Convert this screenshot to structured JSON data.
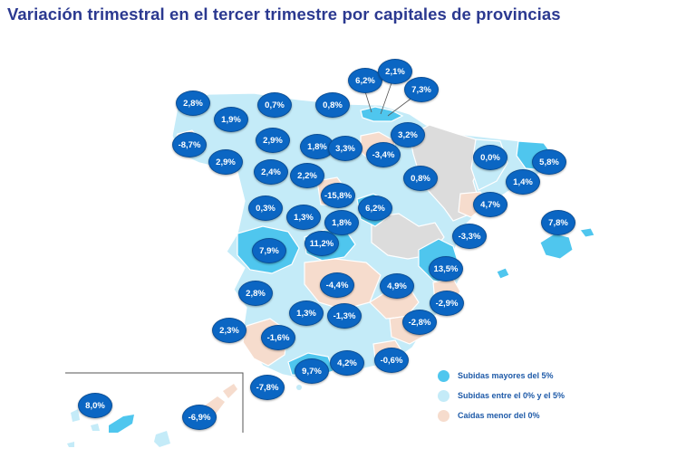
{
  "title": "Variación trimestral en el tercer trimestre por capitales de provincias",
  "colors": {
    "up_more_5": "#4fc6ee",
    "up_0_5": "#c4ebf8",
    "down": "#f6dccd",
    "no_data": "#dcdcdc",
    "bubble": "#0b66c3",
    "title": "#2b3990"
  },
  "legend": [
    {
      "label": "Subidas mayores del 5%",
      "category": "up_more_5"
    },
    {
      "label": "Subidas entre el 0% y el 5%",
      "category": "up_0_5"
    },
    {
      "label": "Caídas menor del 0%",
      "category": "down"
    }
  ],
  "values": [
    {
      "id": "v01",
      "label": "2,8%"
    },
    {
      "id": "v02",
      "label": "0,7%"
    },
    {
      "id": "v03",
      "label": "0,8%"
    },
    {
      "id": "v04",
      "label": "6,2%"
    },
    {
      "id": "v05",
      "label": "2,1%"
    },
    {
      "id": "v06",
      "label": "7,3%"
    },
    {
      "id": "v07",
      "label": "1,9%"
    },
    {
      "id": "v08",
      "label": "-8,7%"
    },
    {
      "id": "v09",
      "label": "2,9%"
    },
    {
      "id": "v10",
      "label": "2,9%"
    },
    {
      "id": "v11",
      "label": "1,8%"
    },
    {
      "id": "v12",
      "label": "3,3%"
    },
    {
      "id": "v13",
      "label": "-3,4%"
    },
    {
      "id": "v14",
      "label": "3,2%"
    },
    {
      "id": "v15",
      "label": "0,0%"
    },
    {
      "id": "v16",
      "label": "5,8%"
    },
    {
      "id": "v17",
      "label": "2,4%"
    },
    {
      "id": "v18",
      "label": "2,2%"
    },
    {
      "id": "v19",
      "label": "0,8%"
    },
    {
      "id": "v20",
      "label": "1,4%"
    },
    {
      "id": "v21",
      "label": "-15,8%"
    },
    {
      "id": "v22",
      "label": "0,3%"
    },
    {
      "id": "v23",
      "label": "1,3%"
    },
    {
      "id": "v24",
      "label": "6,2%"
    },
    {
      "id": "v25",
      "label": "4,7%"
    },
    {
      "id": "v26",
      "label": "1,8%"
    },
    {
      "id": "v27",
      "label": "7,8%"
    },
    {
      "id": "v28",
      "label": "-3,3%"
    },
    {
      "id": "v29",
      "label": "7,9%"
    },
    {
      "id": "v30",
      "label": "11,2%"
    },
    {
      "id": "v31",
      "label": "13,5%"
    },
    {
      "id": "v32",
      "label": "-4,4%"
    },
    {
      "id": "v33",
      "label": "4,9%"
    },
    {
      "id": "v34",
      "label": "2,8%"
    },
    {
      "id": "v35",
      "label": "-2,9%"
    },
    {
      "id": "v36",
      "label": "1,3%"
    },
    {
      "id": "v37",
      "label": "-1,3%"
    },
    {
      "id": "v38",
      "label": "-2,8%"
    },
    {
      "id": "v39",
      "label": "2,3%"
    },
    {
      "id": "v40",
      "label": "-1,6%"
    },
    {
      "id": "v41",
      "label": "-0,6%"
    },
    {
      "id": "v42",
      "label": "4,2%"
    },
    {
      "id": "v43",
      "label": "9,7%"
    },
    {
      "id": "v44",
      "label": "-7,8%"
    },
    {
      "id": "v45",
      "label": "8,0%"
    },
    {
      "id": "v46",
      "label": "-6,9%"
    }
  ]
}
